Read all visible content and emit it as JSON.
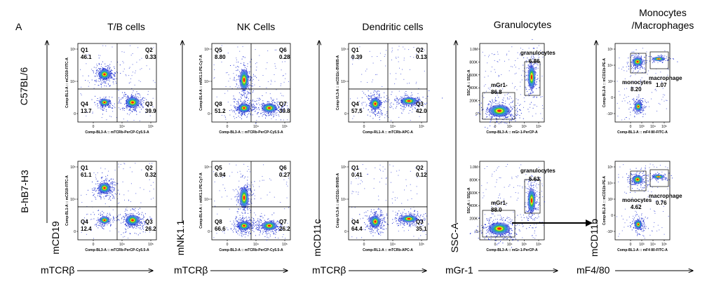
{
  "panel_letter": "A",
  "column_titles": [
    "T/B cells",
    "NK Cells",
    "Dendritic cells",
    "Granulocytes",
    "Monocytes",
    "/Macrophages"
  ],
  "row_labels": [
    "C57BL/6",
    "B-hB7-H3"
  ],
  "axis_titles": {
    "y": [
      "mCD19",
      "mNK1.1",
      "mCD11c",
      "SSC-A",
      "mCD11b"
    ],
    "x": [
      "mTCRβ",
      "mTCRβ",
      "mTCRβ",
      "mGr-1",
      "mF4/80"
    ]
  },
  "colors": {
    "density_low": "#1e2fd1",
    "density_mid": "#34c44a",
    "density_high": "#ff1c0a"
  },
  "chart_data": [
    {
      "type": "scatter",
      "title": "T/B cells",
      "xlabel": "Comp-BL3-A :: mTCRb-PerCP-Cy5.5-A",
      "ylabel": "Comp-BL1-A :: mCD19-FITC-A",
      "xticks": [
        "0",
        "10⁴",
        "10⁵"
      ],
      "yticks": [
        "10⁵",
        "10⁴",
        "0"
      ],
      "quadrant_labels": [
        "Q1",
        "Q2",
        "Q3",
        "Q4"
      ],
      "series": [
        {
          "name": "C57BL/6",
          "quadrants": {
            "Q1": "46.1",
            "Q2": "0.33",
            "Q3": "39.9",
            "Q4": "13.7"
          }
        },
        {
          "name": "B-hB7-H3",
          "quadrants": {
            "Q1": "61.1",
            "Q2": "0.32",
            "Q3": "26.2",
            "Q4": "12.4"
          }
        }
      ]
    },
    {
      "type": "scatter",
      "title": "NK Cells",
      "xlabel": "Comp-BL3-A :: mTCRb-PerCP-Cy5.5-A",
      "ylabel": "Comp-BL4-A :: mNK1.1-PE-Cy7-A",
      "xticks": [
        "0",
        "10⁴",
        "10⁵"
      ],
      "yticks": [
        "10⁵",
        "10⁴",
        "0"
      ],
      "quadrant_labels": [
        "Q5",
        "Q6",
        "Q7",
        "Q8"
      ],
      "series": [
        {
          "name": "C57BL/6",
          "quadrants": {
            "Q5": "8.80",
            "Q6": "0.28",
            "Q7": "39.8",
            "Q8": "51.2"
          }
        },
        {
          "name": "B-hB7-H3",
          "quadrants": {
            "Q5": "6.94",
            "Q6": "0.27",
            "Q7": "26.2",
            "Q8": "66.6"
          }
        }
      ]
    },
    {
      "type": "scatter",
      "title": "Dendritic cells",
      "xlabel": "Comp-RL1-A :: mTCRb-APC-A",
      "ylabel": "Comp-VL3-A :: mCD11c-BV605-A",
      "xticks": [
        "0",
        "10⁴",
        "10⁵"
      ],
      "yticks": [
        "10⁵",
        "10⁴",
        "0"
      ],
      "quadrant_labels": [
        "Q1",
        "Q2",
        "Q3",
        "Q4"
      ],
      "series": [
        {
          "name": "C57BL/6",
          "quadrants": {
            "Q1": "0.39",
            "Q2": "0.13",
            "Q3": "42.0",
            "Q4": "57.5"
          }
        },
        {
          "name": "B-hB7-H3",
          "quadrants": {
            "Q1": "0.41",
            "Q2": "0.12",
            "Q3": "35.1",
            "Q4": "64.4"
          }
        }
      ]
    },
    {
      "type": "scatter",
      "title": "Granulocytes",
      "xlabel": "Comp-BL3-A :: mGr-1-PerCP-A",
      "ylabel": "SSC-A :: SSC-A",
      "xticks": [
        "0",
        "10⁴",
        "10⁵",
        "10⁶"
      ],
      "yticks": [
        "1.0M",
        "800K",
        "600K",
        "400K",
        "200K",
        "0"
      ],
      "gate_labels": [
        "granulocytes",
        "mGr1-"
      ],
      "series": [
        {
          "name": "C57BL/6",
          "gates": {
            "granulocytes": "6.86",
            "mGr1-": "86.8"
          }
        },
        {
          "name": "B-hB7-H3",
          "gates": {
            "granulocytes": "5.63",
            "mGr1-": "88.0"
          }
        }
      ]
    },
    {
      "type": "scatter",
      "title": "Monocytes /Macrophages",
      "xlabel": "Comp-BL1-A :: mF4 80-FITC-A",
      "ylabel": "Comp-BL2-A :: mCD11b-PE-A",
      "xticks": [
        "0",
        "10³",
        "10⁴",
        "10⁵"
      ],
      "yticks": [
        "10⁵",
        "10⁴",
        "10³",
        "0",
        "-10³"
      ],
      "gate_labels": [
        "monocytes",
        "macrophage"
      ],
      "series": [
        {
          "name": "C57BL/6",
          "gates": {
            "monocytes": "8.20",
            "macrophage": "1.07"
          }
        },
        {
          "name": "B-hB7-H3",
          "gates": {
            "monocytes": "4.62",
            "macrophage": "0.76"
          }
        }
      ]
    }
  ]
}
